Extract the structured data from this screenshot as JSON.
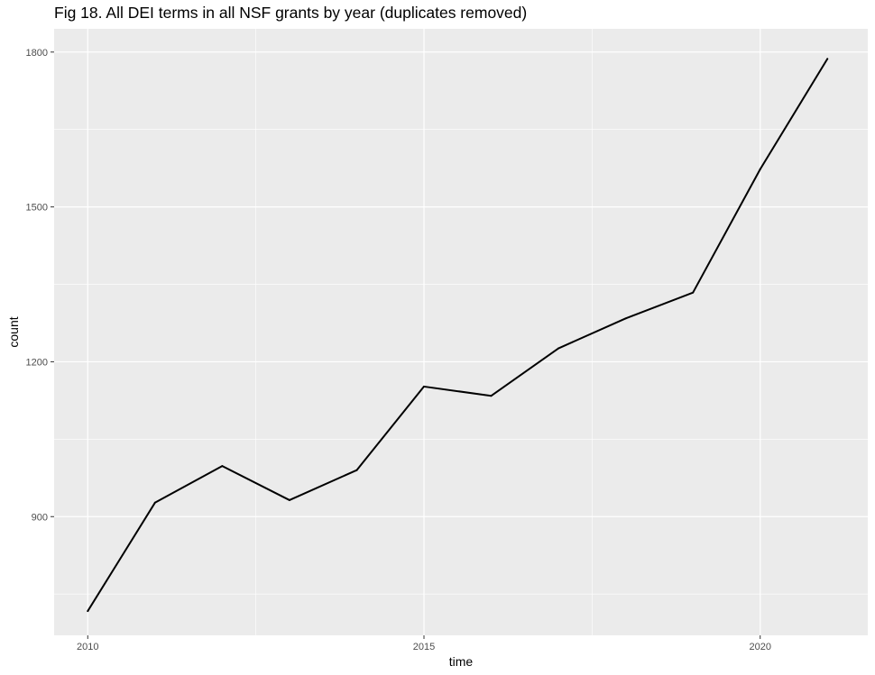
{
  "chart_data": {
    "type": "line",
    "title": "Fig 18. All DEI terms in all NSF grants by year (duplicates removed)",
    "xlabel": "time",
    "ylabel": "count",
    "x": [
      2010,
      2011,
      2012,
      2013,
      2014,
      2015,
      2016,
      2017,
      2018,
      2019,
      2020,
      2021
    ],
    "series": [
      {
        "values": [
          717,
          927,
          998,
          932,
          990,
          1152,
          1134,
          1226,
          1284,
          1334,
          1573,
          1787
        ]
      }
    ],
    "xlim": [
      2009.5,
      2021.6
    ],
    "ylim": [
      670,
      1845
    ],
    "xticks": [
      2010,
      2015,
      2020
    ],
    "xtick_labels": [
      "2010",
      "2015",
      "2020"
    ],
    "yticks": [
      900,
      1200,
      1500,
      1800
    ],
    "ytick_labels": [
      "900",
      "1200",
      "1500",
      "1800"
    ],
    "grid": true,
    "legend": "none",
    "colors": {
      "panel_background": "#ebebeb",
      "grid_major": "#ffffff",
      "line": "#000000",
      "tick_text": "#4d4d4d"
    }
  }
}
